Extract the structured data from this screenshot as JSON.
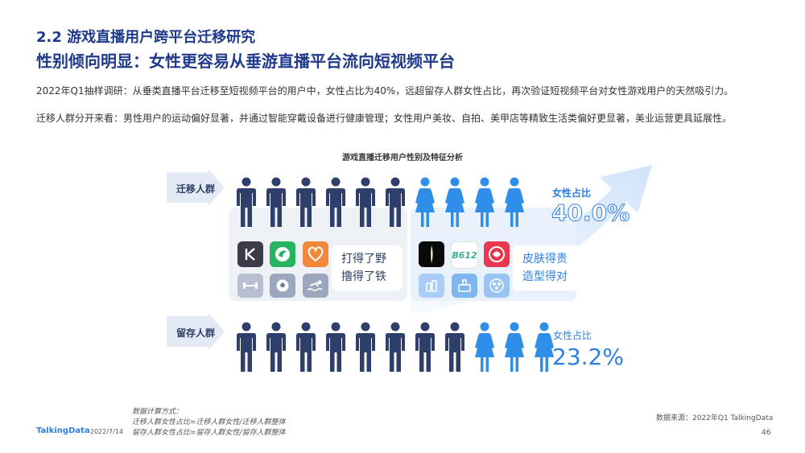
{
  "header": {
    "title1": "2.2 游戏直播用户跨平台迁移研究",
    "title2": "性别倾向明显：女性更容易从垂游直播平台流向短视频平台"
  },
  "body": {
    "para1": "2022年Q1抽样调研：从垂类直播平台迁移至短视频平台的用户中，女性占比为40%，远超留存人群女性占比，再次验证短视频平台对女性游戏用户的天然吸引力。",
    "para2": "迁移人群分开来看：男性用户的运动偏好显著，并通过智能穿戴设备进行健康管理；女性用户美妆、自拍、美甲店等精致生活类偏好更显著，美业运营更具延展性。"
  },
  "chart": {
    "title": "游戏直播迁移用户性别及特征分析",
    "migrated": {
      "label": "迁移人群",
      "male_count": 6,
      "female_count": 4,
      "female_ratio_label": "女性占比",
      "female_ratio_value": "40.0%",
      "male_tags": [
        "打得了野",
        "撸得了铁"
      ],
      "female_tags": [
        "皮肤得贵",
        "造型得对"
      ],
      "male_apps": [
        "keep-app-icon",
        "wearable-app-icon",
        "heart-health-app-icon"
      ],
      "male_interest_icons": [
        "dumbbell-icon",
        "soccer-ball-icon",
        "swimming-icon"
      ],
      "female_apps": [
        "beauty-app-icon",
        "b612-app-icon",
        "camera-beauty-app-icon"
      ],
      "female_interest_icons": [
        "cosmetics-icon",
        "makeup-kit-icon",
        "nail-salon-icon"
      ],
      "b612_text": "B612"
    },
    "retained": {
      "label": "留存人群",
      "male_count": 8,
      "female_count": 3,
      "female_ratio_label": "女性占比",
      "female_ratio_value": "23.2%"
    }
  },
  "footer": {
    "logo": "TalkingData",
    "date": "2022/7/14",
    "note_title": "数据计算方式：",
    "note_line1": "迁移人群女性占比=迁移人群女性/迁移人群整体",
    "note_line2": "留存人群女性占比=留存人群女性/留存人群整体",
    "source": "数据来源：2022年Q1 TalkingData",
    "page": "46"
  },
  "colors": {
    "male": "#2f3f6b",
    "female": "#2f8fe8",
    "title": "#1f3a8a",
    "accent": "#2f7fe0"
  }
}
